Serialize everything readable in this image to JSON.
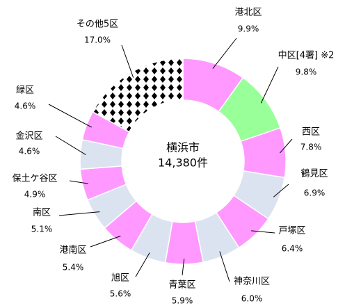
{
  "chart_data": {
    "type": "donut",
    "center_title": "横浜市",
    "center_value": "14,380件",
    "categories": [
      "港北区",
      "中区[4署] ※2",
      "西区",
      "鶴見区",
      "戸塚区",
      "神奈川区",
      "青葉区",
      "旭区",
      "港南区",
      "南区",
      "保土ケ谷区",
      "金沢区",
      "緑区",
      "その他5区"
    ],
    "values": [
      9.9,
      9.8,
      7.8,
      6.9,
      6.4,
      6.0,
      5.9,
      5.6,
      5.4,
      5.1,
      4.9,
      4.6,
      4.6,
      17.0
    ],
    "value_labels": [
      "9.9%",
      "9.8%",
      "7.8%",
      "6.9%",
      "6.4%",
      "6.0%",
      "5.9%",
      "5.6%",
      "5.4%",
      "5.1%",
      "4.9%",
      "4.6%",
      "4.6%",
      "17.0%"
    ],
    "colors": [
      "#ff99ff",
      "#99ff99",
      "#ff99ff",
      "#dce3f0",
      "#ff99ff",
      "#dce3f0",
      "#ff99ff",
      "#dce3f0",
      "#ff99ff",
      "#dce3f0",
      "#ff99ff",
      "#dce3f0",
      "#ff99ff",
      "#000000"
    ]
  }
}
